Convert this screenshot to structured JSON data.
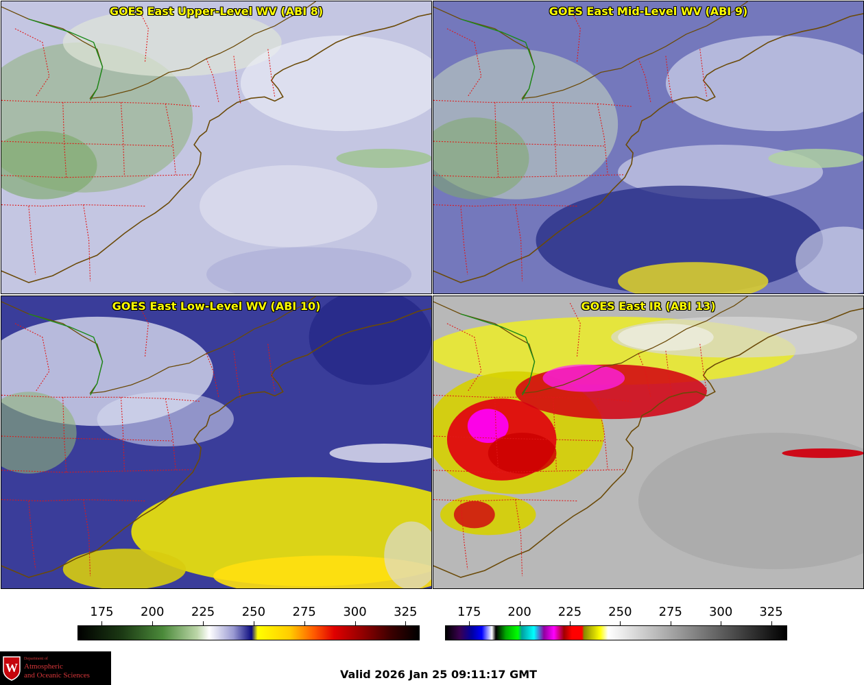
{
  "panels": [
    {
      "id": "p1",
      "title": "GOES East Upper-Level WV (ABI 8)",
      "base": "#c4c6e2",
      "scheme": "upper"
    },
    {
      "id": "p2",
      "title": "GOES East Mid-Level WV (ABI 9)",
      "base": "#7478bc",
      "scheme": "mid"
    },
    {
      "id": "p3",
      "title": "GOES East Low-Level WV (ABI 10)",
      "base": "#3a3d9a",
      "scheme": "low"
    },
    {
      "id": "p4",
      "title": "GOES East IR (ABI 13)",
      "base": "#b8b8b8",
      "scheme": "ir"
    }
  ],
  "colorbars": [
    {
      "name": "wv-colorbar",
      "ticks": [
        "175",
        "200",
        "225",
        "250",
        "275",
        "300",
        "325"
      ],
      "tick_values": [
        175,
        200,
        225,
        250,
        275,
        300,
        325
      ],
      "range": [
        163,
        332
      ],
      "stops": [
        [
          163,
          "#000000"
        ],
        [
          185,
          "#1c3a14"
        ],
        [
          205,
          "#4b8a3a"
        ],
        [
          222,
          "#bcd6a8"
        ],
        [
          228,
          "#ffffff"
        ],
        [
          240,
          "#9a9ad2"
        ],
        [
          249,
          "#0c0c80"
        ],
        [
          252,
          "#ffff00"
        ],
        [
          268,
          "#ffcc00"
        ],
        [
          280,
          "#ff5a00"
        ],
        [
          290,
          "#e00000"
        ],
        [
          305,
          "#8c0000"
        ],
        [
          318,
          "#3c0000"
        ],
        [
          332,
          "#000000"
        ]
      ]
    },
    {
      "name": "ir-colorbar",
      "ticks": [
        "175",
        "200",
        "225",
        "250",
        "275",
        "300",
        "325"
      ],
      "tick_values": [
        175,
        200,
        225,
        250,
        275,
        300,
        325
      ],
      "range": [
        163,
        333
      ],
      "stops": [
        [
          163,
          "#000000"
        ],
        [
          170,
          "#3a0050"
        ],
        [
          176,
          "#0000a0"
        ],
        [
          181,
          "#0000ff"
        ],
        [
          186,
          "#ffffff"
        ],
        [
          188,
          "#000000"
        ],
        [
          193,
          "#00aa00"
        ],
        [
          199,
          "#00ff00"
        ],
        [
          201,
          "#00a0a0"
        ],
        [
          207,
          "#00ffff"
        ],
        [
          212,
          "#9000a0"
        ],
        [
          217,
          "#ff00ff"
        ],
        [
          222,
          "#a00000"
        ],
        [
          226,
          "#ff0000"
        ],
        [
          231,
          "#ff0000"
        ],
        [
          232,
          "#888800"
        ],
        [
          240,
          "#ffff00"
        ],
        [
          244,
          "#ffffff"
        ],
        [
          333,
          "#000000"
        ]
      ]
    }
  ],
  "logo": {
    "department": "Department of",
    "line1": "Atmospheric",
    "line2": "and Oceanic Sciences"
  },
  "valid_time": "Valid 2026 Jan 25 09:11:17 GMT"
}
